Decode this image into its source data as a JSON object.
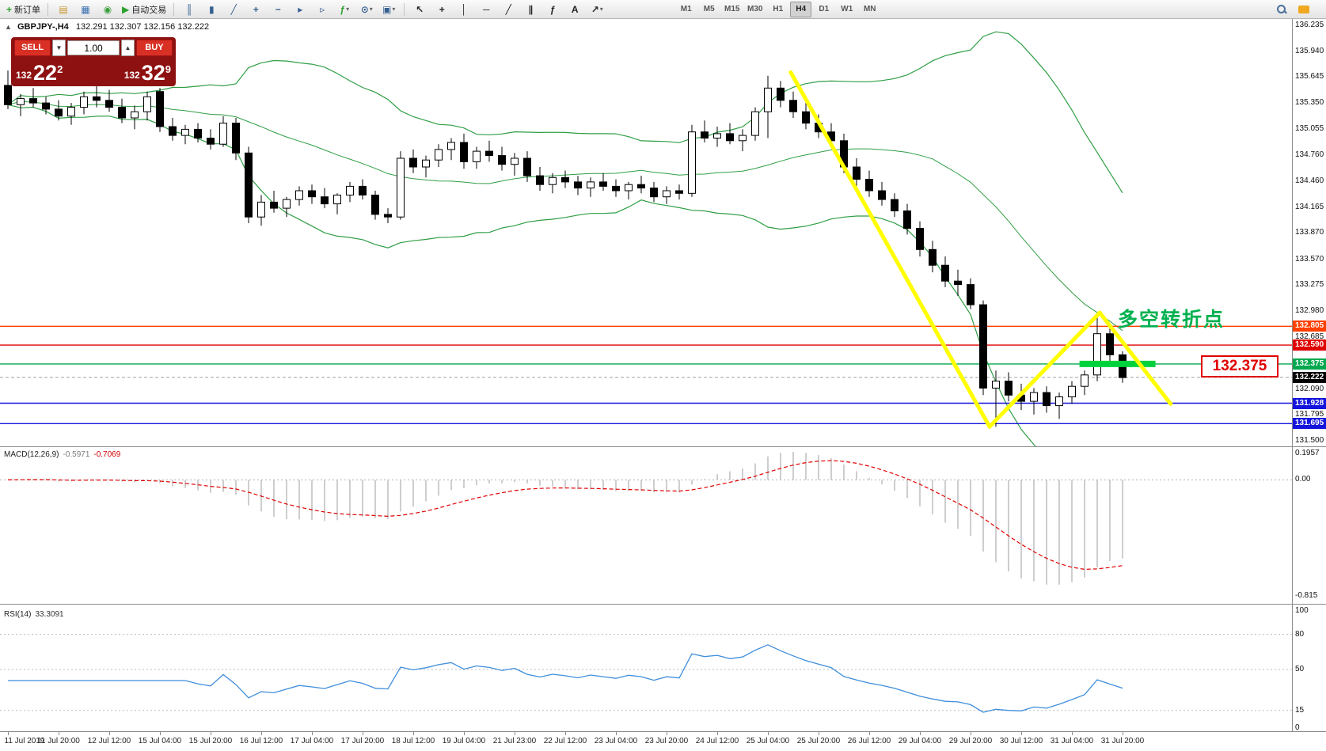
{
  "toolbar": {
    "new_order": {
      "label": "新订单",
      "glyph": "+"
    },
    "autotrading": {
      "label": "自动交易",
      "glyph": "▶"
    },
    "file_buttons": [
      {
        "name": "profiles",
        "glyph": "▤",
        "color": "#c9972c"
      },
      {
        "name": "metaeditor",
        "glyph": "▦",
        "color": "#3b6fb0"
      },
      {
        "name": "options",
        "glyph": "◉",
        "color": "#3a9e3a"
      }
    ],
    "chart_buttons": [
      {
        "name": "bar-chart",
        "glyph": "║",
        "color": "#355f91"
      },
      {
        "name": "candlestick-chart",
        "glyph": "▮",
        "color": "#355f91"
      },
      {
        "name": "line-chart",
        "glyph": "╱",
        "color": "#355f91"
      },
      {
        "name": "zoom-in",
        "glyph": "+",
        "color": "#355f91"
      },
      {
        "name": "zoom-out",
        "glyph": "−",
        "color": "#355f91"
      },
      {
        "name": "auto-scroll",
        "glyph": "▸",
        "color": "#355f91"
      },
      {
        "name": "chart-shift",
        "glyph": "▹",
        "color": "#355f91"
      },
      {
        "name": "indicators",
        "glyph": "ƒ",
        "color": "#2da12d",
        "dropdown": true
      },
      {
        "name": "periods",
        "glyph": "⊙",
        "color": "#355f91",
        "dropdown": true
      },
      {
        "name": "templates",
        "glyph": "▣",
        "color": "#355f91",
        "dropdown": true
      }
    ],
    "tool_buttons": [
      {
        "name": "cursor",
        "glyph": "↖",
        "color": "#222222"
      },
      {
        "name": "crosshair",
        "glyph": "+",
        "color": "#222222"
      },
      {
        "name": "vertical-line",
        "glyph": "│",
        "color": "#222222"
      },
      {
        "name": "horizontal-line",
        "glyph": "─",
        "color": "#222222"
      },
      {
        "name": "trendline",
        "glyph": "╱",
        "color": "#222222"
      },
      {
        "name": "equidistant-channel",
        "glyph": "∥",
        "color": "#222222"
      },
      {
        "name": "fibonacci",
        "glyph": "ƒ",
        "color": "#222222"
      },
      {
        "name": "text",
        "glyph": "A",
        "color": "#222222"
      },
      {
        "name": "arrows",
        "glyph": "↗",
        "color": "#222222",
        "dropdown": true
      }
    ],
    "timeframes": [
      "M1",
      "M5",
      "M15",
      "M30",
      "H1",
      "H4",
      "D1",
      "W1",
      "MN"
    ],
    "active_timeframe": "H4"
  },
  "header": {
    "collapse_icon": "▲",
    "symbol": "GBPJPY-,H4",
    "ohlc": "132.291 132.307 132.156 132.222"
  },
  "order_panel": {
    "sell_label": "SELL",
    "buy_label": "BUY",
    "volume": "1.00",
    "spin_down_glyph": "▼",
    "spin_up_glyph": "▲",
    "sell_price_prefix": "132",
    "sell_price_main": "22",
    "sell_price_sup": "2",
    "buy_price_prefix": "132",
    "buy_price_main": "32",
    "buy_price_sup": "9"
  },
  "annotations": {
    "turning_point": "多空转折点",
    "price_box": "132.375"
  },
  "chart_data": {
    "type": "candlestick",
    "symbol": "GBPJPY",
    "timeframe": "H4",
    "bollinger": {
      "period": 20,
      "deviation": 2
    },
    "candles": [
      [
        135.55,
        135.72,
        135.28,
        135.33
      ],
      [
        135.33,
        135.45,
        135.2,
        135.4
      ],
      [
        135.4,
        135.52,
        135.3,
        135.35
      ],
      [
        135.35,
        135.42,
        135.22,
        135.28
      ],
      [
        135.28,
        135.38,
        135.15,
        135.2
      ],
      [
        135.2,
        135.35,
        135.1,
        135.3
      ],
      [
        135.3,
        135.48,
        135.22,
        135.42
      ],
      [
        135.42,
        135.55,
        135.3,
        135.38
      ],
      [
        135.38,
        135.5,
        135.25,
        135.3
      ],
      [
        135.3,
        135.4,
        135.12,
        135.18
      ],
      [
        135.18,
        135.32,
        135.05,
        135.25
      ],
      [
        135.25,
        135.48,
        135.15,
        135.42
      ],
      [
        135.48,
        135.52,
        135.02,
        135.08
      ],
      [
        135.08,
        135.18,
        134.92,
        134.98
      ],
      [
        134.98,
        135.1,
        134.88,
        135.05
      ],
      [
        135.05,
        135.12,
        134.9,
        134.95
      ],
      [
        134.95,
        135.05,
        134.82,
        134.88
      ],
      [
        134.88,
        135.2,
        134.85,
        135.12
      ],
      [
        135.12,
        135.18,
        134.7,
        134.78
      ],
      [
        134.78,
        134.85,
        133.98,
        134.05
      ],
      [
        134.05,
        134.3,
        133.95,
        134.22
      ],
      [
        134.22,
        134.35,
        134.1,
        134.15
      ],
      [
        134.15,
        134.28,
        134.05,
        134.25
      ],
      [
        134.25,
        134.4,
        134.18,
        134.35
      ],
      [
        134.35,
        134.42,
        134.2,
        134.28
      ],
      [
        134.28,
        134.38,
        134.15,
        134.2
      ],
      [
        134.2,
        134.32,
        134.08,
        134.3
      ],
      [
        134.3,
        134.45,
        134.22,
        134.4
      ],
      [
        134.4,
        134.48,
        134.25,
        134.3
      ],
      [
        134.3,
        134.35,
        134.02,
        134.08
      ],
      [
        134.08,
        134.15,
        133.98,
        134.05
      ],
      [
        134.05,
        134.8,
        134.02,
        134.72
      ],
      [
        134.72,
        134.82,
        134.55,
        134.62
      ],
      [
        134.62,
        134.75,
        134.5,
        134.7
      ],
      [
        134.7,
        134.88,
        134.62,
        134.82
      ],
      [
        134.82,
        134.95,
        134.7,
        134.9
      ],
      [
        134.9,
        135.0,
        134.6,
        134.68
      ],
      [
        134.68,
        134.85,
        134.6,
        134.8
      ],
      [
        134.8,
        134.92,
        134.68,
        134.75
      ],
      [
        134.75,
        134.85,
        134.58,
        134.65
      ],
      [
        134.65,
        134.78,
        134.52,
        134.72
      ],
      [
        134.72,
        134.8,
        134.45,
        134.52
      ],
      [
        134.52,
        134.62,
        134.35,
        134.42
      ],
      [
        134.42,
        134.55,
        134.32,
        134.5
      ],
      [
        134.5,
        134.58,
        134.38,
        134.45
      ],
      [
        134.45,
        134.52,
        134.3,
        134.38
      ],
      [
        134.38,
        134.5,
        134.28,
        134.45
      ],
      [
        134.45,
        134.55,
        134.35,
        134.4
      ],
      [
        134.4,
        134.48,
        134.28,
        134.35
      ],
      [
        134.35,
        134.45,
        134.25,
        134.42
      ],
      [
        134.42,
        134.52,
        134.32,
        134.38
      ],
      [
        134.38,
        134.45,
        134.22,
        134.28
      ],
      [
        134.28,
        134.4,
        134.2,
        134.35
      ],
      [
        134.35,
        134.42,
        134.25,
        134.32
      ],
      [
        134.32,
        135.1,
        134.28,
        135.02
      ],
      [
        135.02,
        135.15,
        134.9,
        134.95
      ],
      [
        134.95,
        135.08,
        134.85,
        135.0
      ],
      [
        135.0,
        135.12,
        134.88,
        134.92
      ],
      [
        134.92,
        135.05,
        134.8,
        134.98
      ],
      [
        134.98,
        135.3,
        134.92,
        135.25
      ],
      [
        135.25,
        135.66,
        134.95,
        135.52
      ],
      [
        135.52,
        135.6,
        135.3,
        135.38
      ],
      [
        135.38,
        135.48,
        135.18,
        135.25
      ],
      [
        135.25,
        135.35,
        135.05,
        135.12
      ],
      [
        135.12,
        135.22,
        134.95,
        135.02
      ],
      [
        135.02,
        135.12,
        134.85,
        134.92
      ],
      [
        134.92,
        135.0,
        134.55,
        134.62
      ],
      [
        134.62,
        134.72,
        134.4,
        134.48
      ],
      [
        134.48,
        134.58,
        134.28,
        134.35
      ],
      [
        134.35,
        134.45,
        134.18,
        134.25
      ],
      [
        134.25,
        134.32,
        134.05,
        134.12
      ],
      [
        134.12,
        134.2,
        133.85,
        133.92
      ],
      [
        133.92,
        134.0,
        133.6,
        133.68
      ],
      [
        133.68,
        133.78,
        133.42,
        133.5
      ],
      [
        133.5,
        133.6,
        133.25,
        133.32
      ],
      [
        133.32,
        133.45,
        133.15,
        133.28
      ],
      [
        133.28,
        133.35,
        133.0,
        133.05
      ],
      [
        133.05,
        133.1,
        132.02,
        132.1
      ],
      [
        132.1,
        132.3,
        131.66,
        132.18
      ],
      [
        132.18,
        132.28,
        131.95,
        132.02
      ],
      [
        132.02,
        132.15,
        131.85,
        131.95
      ],
      [
        131.95,
        132.1,
        131.8,
        132.05
      ],
      [
        132.05,
        132.12,
        131.82,
        131.9
      ],
      [
        131.9,
        132.05,
        131.75,
        132.0
      ],
      [
        132.0,
        132.18,
        131.92,
        132.12
      ],
      [
        132.12,
        132.3,
        132.02,
        132.25
      ],
      [
        132.25,
        132.9,
        132.18,
        132.72
      ],
      [
        132.72,
        132.8,
        132.4,
        132.48
      ],
      [
        132.48,
        132.52,
        132.16,
        132.22
      ]
    ],
    "hlines": [
      {
        "price": 132.805,
        "label": "132.805",
        "color": "#ff4000"
      },
      {
        "price": 132.59,
        "label": "132.590",
        "color": "#e00000"
      },
      {
        "price": 132.375,
        "label": "132.375",
        "color": "#00a84f"
      },
      {
        "price": 131.928,
        "label": "131.928",
        "color": "#1414dc"
      },
      {
        "price": 131.695,
        "label": "131.695",
        "color": "#1414dc"
      }
    ],
    "current_price": 132.222,
    "current_price_label": "132.222",
    "trendlines": [
      {
        "points": [
          [
            61.8,
            135.7
          ],
          [
            77.5,
            131.66
          ]
        ],
        "color": "#ffff00",
        "width": 5
      },
      {
        "points": [
          [
            77.5,
            131.66
          ],
          [
            86.2,
            132.96
          ]
        ],
        "color": "#ffff00",
        "width": 5
      },
      {
        "points": [
          [
            86.2,
            132.96
          ],
          [
            91.8,
            131.92
          ]
        ],
        "color": "#ffff00",
        "width": 5
      }
    ],
    "highlight_segment": {
      "from_index": 84.6,
      "to_index": 90.6,
      "price": 132.375,
      "color": "#00d23c"
    },
    "y_ticks": [
      "136.235",
      "135.940",
      "135.645",
      "135.350",
      "135.055",
      "134.760",
      "134.460",
      "134.165",
      "133.870",
      "133.570",
      "133.275",
      "132.980",
      "132.685",
      "132.390",
      "132.090",
      "131.795",
      "131.500"
    ],
    "time_labels": [
      "11 Jul 2019",
      "11 Jul 20:00",
      "12 Jul 12:00",
      "15 Jul 04:00",
      "15 Jul 20:00",
      "16 Jul 12:00",
      "17 Jul 04:00",
      "17 Jul 20:00",
      "18 Jul 12:00",
      "19 Jul 04:00",
      "21 Jul 23:00",
      "22 Jul 12:00",
      "23 Jul 04:00",
      "23 Jul 20:00",
      "24 Jul 12:00",
      "25 Jul 04:00",
      "25 Jul 20:00",
      "26 Jul 12:00",
      "29 Jul 04:00",
      "29 Jul 20:00",
      "30 Jul 12:00",
      "31 Jul 04:00",
      "31 Jul 20:00"
    ],
    "macd": {
      "label": "MACD(12,26,9)",
      "value_main": "-0.5971",
      "value_signal": "-0.7069",
      "axis": [
        "0.1957",
        "0.00",
        "-0.815"
      ]
    },
    "rsi": {
      "label": "RSI(14)",
      "value": "33.3091",
      "axis": [
        "100",
        "80",
        "50",
        "15",
        "0"
      ],
      "levels": [
        80,
        50,
        15
      ]
    }
  },
  "colors": {
    "band": "#2f9e44",
    "bull": "#ffffff",
    "bear": "#000000",
    "macd_hist": "#b8b8b8",
    "macd_signal": "#e00000",
    "rsi_line": "#3f8edc",
    "bid_line": "#9aa0a6"
  }
}
